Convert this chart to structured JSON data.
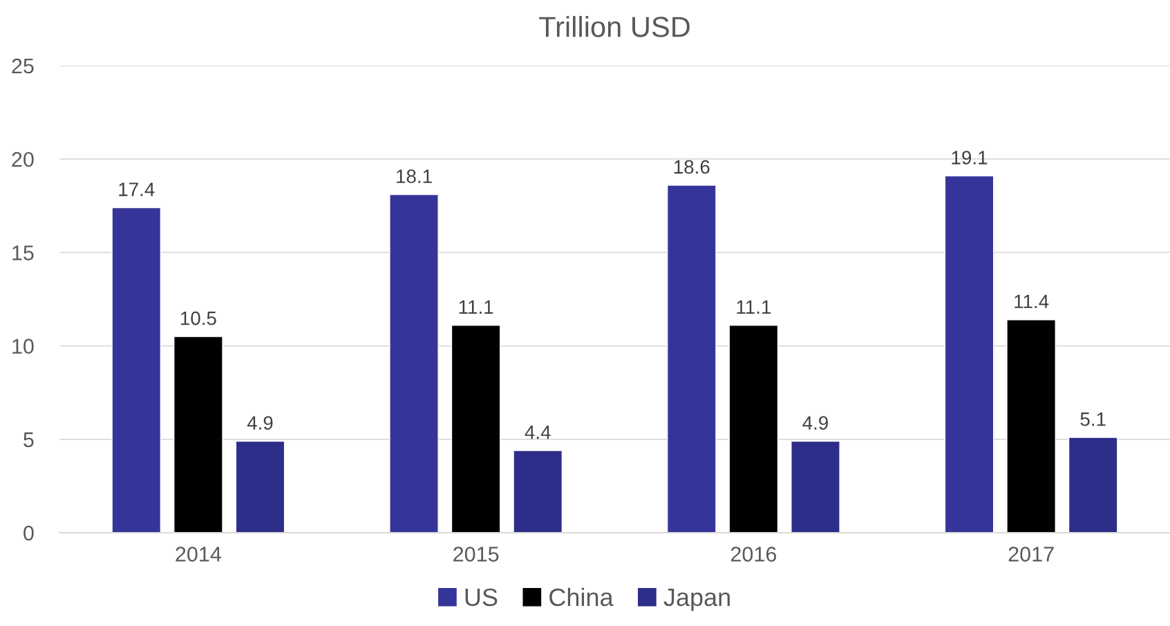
{
  "chart_data": {
    "type": "bar",
    "title": "Trillion USD",
    "categories": [
      "2014",
      "2015",
      "2016",
      "2017"
    ],
    "series": [
      {
        "name": "US",
        "color": "#353599",
        "values": [
          17.4,
          18.1,
          18.6,
          19.1
        ]
      },
      {
        "name": "China",
        "color": "#000000",
        "values": [
          10.5,
          11.1,
          11.1,
          11.4
        ]
      },
      {
        "name": "Japan",
        "color": "#2d2d8a",
        "values": [
          4.9,
          4.4,
          4.9,
          5.1
        ]
      }
    ],
    "ylim": [
      0,
      25
    ],
    "yticks": [
      0,
      5,
      10,
      15,
      20,
      25
    ],
    "grid": "y",
    "legend": "bottom",
    "data_labels": true
  }
}
